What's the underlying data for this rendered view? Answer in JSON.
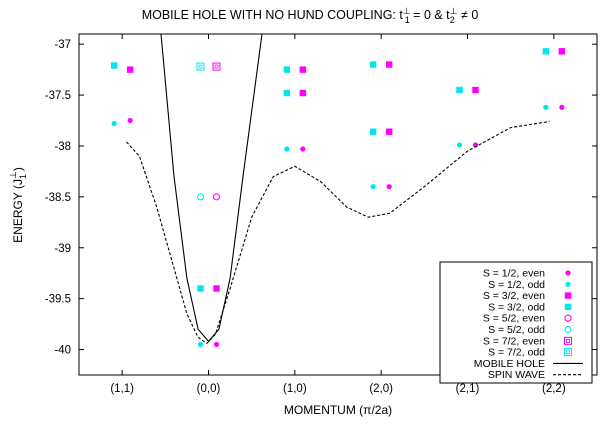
{
  "chart_data": {
    "type": "scatter",
    "title_main": "MOBILE HOLE WITH NO HUND COUPLING: t",
    "title_t1_sup": "⊥",
    "title_t1_sub": "1",
    "title_mid": " = 0 & t",
    "title_t2_sub": "2",
    "title_t2_sup": "⊥",
    "title_end": " ≠ 0",
    "xlabel": "MOMENTUM (π/2a)",
    "ylabel_main": "ENERGY (J",
    "ylabel_sub": "1",
    "ylabel_sup": "⊥",
    "ylabel_end": ")",
    "x_categories": [
      "(1,1)",
      "(0,0)",
      "(1,0)",
      "(2,0)",
      "(2,1)",
      "(2,2)"
    ],
    "yticks": [
      {
        "value": -37,
        "label": "-37"
      },
      {
        "value": -37.5,
        "label": "-37.5"
      },
      {
        "value": -38,
        "label": "-38"
      },
      {
        "value": -38.5,
        "label": "-38.5"
      },
      {
        "value": -39,
        "label": "-39"
      },
      {
        "value": -39.5,
        "label": "-39.5"
      },
      {
        "value": -40,
        "label": "-40"
      }
    ],
    "ylim": [
      -40.25,
      -36.9
    ],
    "xlim": [
      0.5,
      6.5
    ],
    "grid": false,
    "legend_position": "bottom-right",
    "series": [
      {
        "name": "S = 1/2, even",
        "marker": "filled-circle",
        "color": "#ff00ff",
        "points": [
          {
            "x": 1,
            "y": -37.75
          },
          {
            "x": 2,
            "y": -39.95
          },
          {
            "x": 3,
            "y": -38.03
          },
          {
            "x": 4,
            "y": -38.4
          },
          {
            "x": 5,
            "y": -37.99
          },
          {
            "x": 6,
            "y": -37.62
          }
        ]
      },
      {
        "name": "S = 1/2, odd",
        "marker": "filled-circle",
        "color": "#00e5ee",
        "points": [
          {
            "x": 1,
            "y": -37.78
          },
          {
            "x": 2,
            "y": -39.95
          },
          {
            "x": 3,
            "y": -38.03
          },
          {
            "x": 4,
            "y": -38.4
          },
          {
            "x": 5,
            "y": -37.99
          },
          {
            "x": 6,
            "y": -37.62
          }
        ]
      },
      {
        "name": "S = 3/2, even",
        "marker": "filled-square",
        "color": "#ff00ff",
        "points": [
          {
            "x": 1,
            "y": -37.25
          },
          {
            "x": 2,
            "y": -39.4
          },
          {
            "x": 3,
            "y": -37.25
          },
          {
            "x": 3,
            "y": -37.48
          },
          {
            "x": 4,
            "y": -37.2
          },
          {
            "x": 4,
            "y": -37.86
          },
          {
            "x": 5,
            "y": -37.45
          },
          {
            "x": 6,
            "y": -37.07
          }
        ]
      },
      {
        "name": "S = 3/2, odd",
        "marker": "filled-square",
        "color": "#00e5ee",
        "points": [
          {
            "x": 1,
            "y": -37.21
          },
          {
            "x": 2,
            "y": -39.4
          },
          {
            "x": 3,
            "y": -37.25
          },
          {
            "x": 3,
            "y": -37.48
          },
          {
            "x": 4,
            "y": -37.2
          },
          {
            "x": 4,
            "y": -37.86
          },
          {
            "x": 5,
            "y": -37.45
          },
          {
            "x": 6,
            "y": -37.07
          }
        ]
      },
      {
        "name": "S = 5/2, even",
        "marker": "open-circle",
        "color": "#ff00ff",
        "points": [
          {
            "x": 2,
            "y": -38.5
          }
        ]
      },
      {
        "name": "S = 5/2, odd",
        "marker": "open-circle",
        "color": "#00e5ee",
        "points": [
          {
            "x": 2,
            "y": -38.5
          }
        ]
      },
      {
        "name": "S = 7/2, even",
        "marker": "open-square",
        "color": "#ff00ff",
        "points": [
          {
            "x": 2,
            "y": -37.22
          }
        ]
      },
      {
        "name": "S = 7/2, odd",
        "marker": "open-square",
        "color": "#00e5ee",
        "points": [
          {
            "x": 2,
            "y": -37.22
          }
        ]
      },
      {
        "name": "MOBILE HOLE",
        "marker": "solid-line",
        "color": "#000000",
        "points": [
          {
            "x": 1.45,
            "y": -36.9
          },
          {
            "x": 1.6,
            "y": -38.3
          },
          {
            "x": 1.75,
            "y": -39.3
          },
          {
            "x": 1.88,
            "y": -39.8
          },
          {
            "x": 2.0,
            "y": -39.92
          },
          {
            "x": 2.12,
            "y": -39.8
          },
          {
            "x": 2.25,
            "y": -39.3
          },
          {
            "x": 2.4,
            "y": -38.3
          },
          {
            "x": 2.62,
            "y": -36.9
          }
        ]
      },
      {
        "name": "SPIN WAVE",
        "marker": "dashed-line",
        "color": "#000000",
        "points": [
          {
            "x": 1.05,
            "y": -37.96
          },
          {
            "x": 1.2,
            "y": -38.1
          },
          {
            "x": 1.4,
            "y": -38.6
          },
          {
            "x": 1.6,
            "y": -39.2
          },
          {
            "x": 1.75,
            "y": -39.65
          },
          {
            "x": 1.88,
            "y": -39.88
          },
          {
            "x": 1.98,
            "y": -39.94
          },
          {
            "x": 2.08,
            "y": -39.85
          },
          {
            "x": 2.25,
            "y": -39.4
          },
          {
            "x": 2.5,
            "y": -38.7
          },
          {
            "x": 2.75,
            "y": -38.3
          },
          {
            "x": 3.0,
            "y": -38.2
          },
          {
            "x": 3.3,
            "y": -38.35
          },
          {
            "x": 3.6,
            "y": -38.6
          },
          {
            "x": 3.85,
            "y": -38.7
          },
          {
            "x": 4.1,
            "y": -38.66
          },
          {
            "x": 4.5,
            "y": -38.4
          },
          {
            "x": 5.0,
            "y": -38.05
          },
          {
            "x": 5.5,
            "y": -37.82
          },
          {
            "x": 5.95,
            "y": -37.76
          }
        ]
      }
    ]
  }
}
